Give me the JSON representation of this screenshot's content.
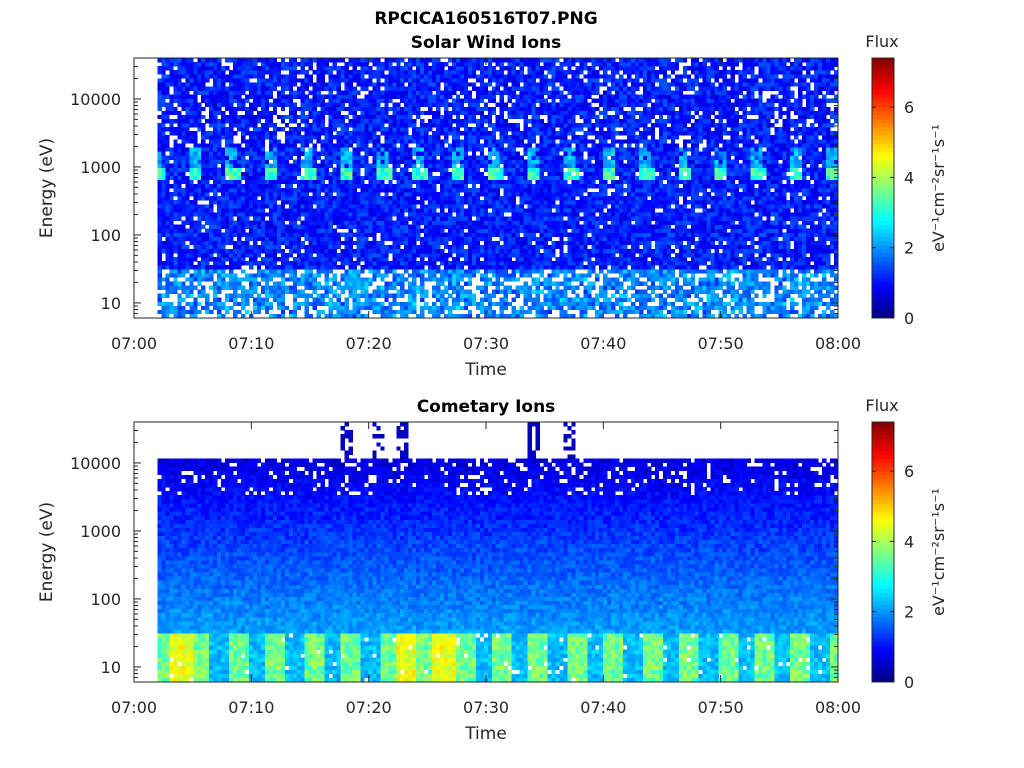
{
  "figure_title": "RPCICA160516T07.PNG",
  "chart_data": [
    {
      "type": "heatmap",
      "title": "Solar Wind Ions",
      "xlabel": "Time",
      "ylabel": "Energy (eV)",
      "x_ticks": [
        "07:00",
        "07:10",
        "07:20",
        "07:30",
        "07:40",
        "07:50",
        "08:00"
      ],
      "xlim": [
        "07:00",
        "08:00"
      ],
      "y_scale": "log",
      "y_ticks": [
        "10",
        "100",
        "1000",
        "10000"
      ],
      "ylim": [
        6,
        40000
      ],
      "data_start": "07:02",
      "colorbar": {
        "title": "Flux",
        "label_base": "eV",
        "label": "eV-1cm-2sr-1s-1",
        "label_text": "eV⁻¹cm⁻²sr⁻¹s⁻¹",
        "ticks": [
          "0",
          "2",
          "4",
          "6"
        ],
        "range": [
          0,
          7.4
        ]
      },
      "description": "Low flux (0.5-1.5) throughout; periodic peaks of ~3-3.5 at ~700-1000 eV roughly every 3.2 min; many empty bins below 30 eV and above 2000 eV"
    },
    {
      "type": "heatmap",
      "title": "Cometary Ions",
      "xlabel": "Time",
      "ylabel": "Energy (eV)",
      "x_ticks": [
        "07:00",
        "07:10",
        "07:20",
        "07:30",
        "07:40",
        "07:50",
        "08:00"
      ],
      "xlim": [
        "07:00",
        "08:00"
      ],
      "y_scale": "log",
      "y_ticks": [
        "10",
        "100",
        "1000",
        "10000"
      ],
      "ylim": [
        6,
        40000
      ],
      "data_start": "07:02",
      "colorbar": {
        "title": "Flux",
        "label_base": "eV",
        "label": "eV-1cm-2sr-1s-1",
        "label_text": "eV⁻¹cm⁻²sr⁻¹s⁻¹",
        "ticks": [
          "0",
          "2",
          "4",
          "6"
        ],
        "range": [
          0,
          7.4
        ]
      },
      "description": "Flux increases toward low energy; strong periodic band 7-30 eV with values ~3-5 peaking near 07:04, 07:23, 07:26; data cut-off near 11000 eV with sparse high-energy streaks near 07:18, 07:20-07:23, 07:34, 07:37"
    }
  ]
}
